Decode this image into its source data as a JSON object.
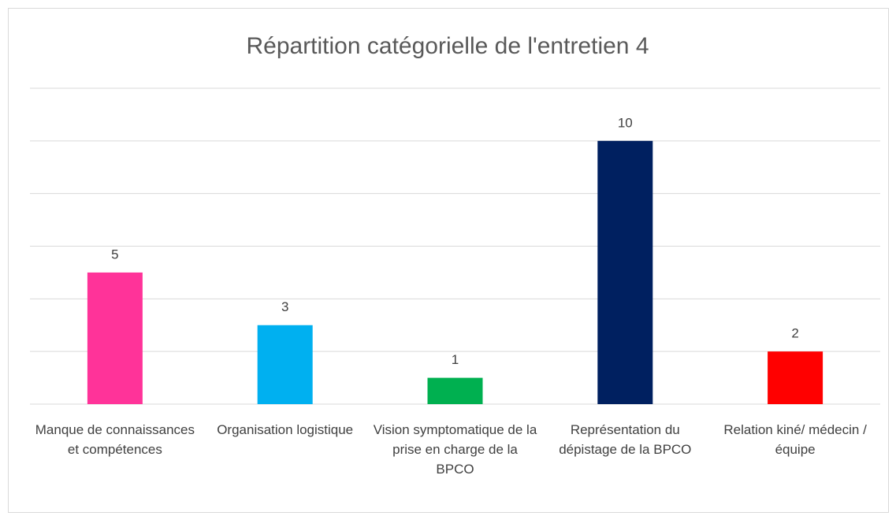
{
  "chart_data": {
    "type": "bar",
    "title": "Répartition catégorielle de l'entretien 4",
    "categories": [
      "Manque de connaissances et compétences",
      "Organisation logistique",
      "Vision symptomatique de la prise en charge de la BPCO",
      "Représentation du dépistage de la BPCO",
      "Relation kiné/ médecin / équipe"
    ],
    "values": [
      5,
      3,
      1,
      10,
      2
    ],
    "colors": [
      "#ff3399",
      "#00b0f0",
      "#00b050",
      "#002060",
      "#ff0000"
    ],
    "ylim": [
      0,
      12
    ],
    "yticks": [
      0,
      2,
      4,
      6,
      8,
      10,
      12
    ],
    "grid": true
  }
}
